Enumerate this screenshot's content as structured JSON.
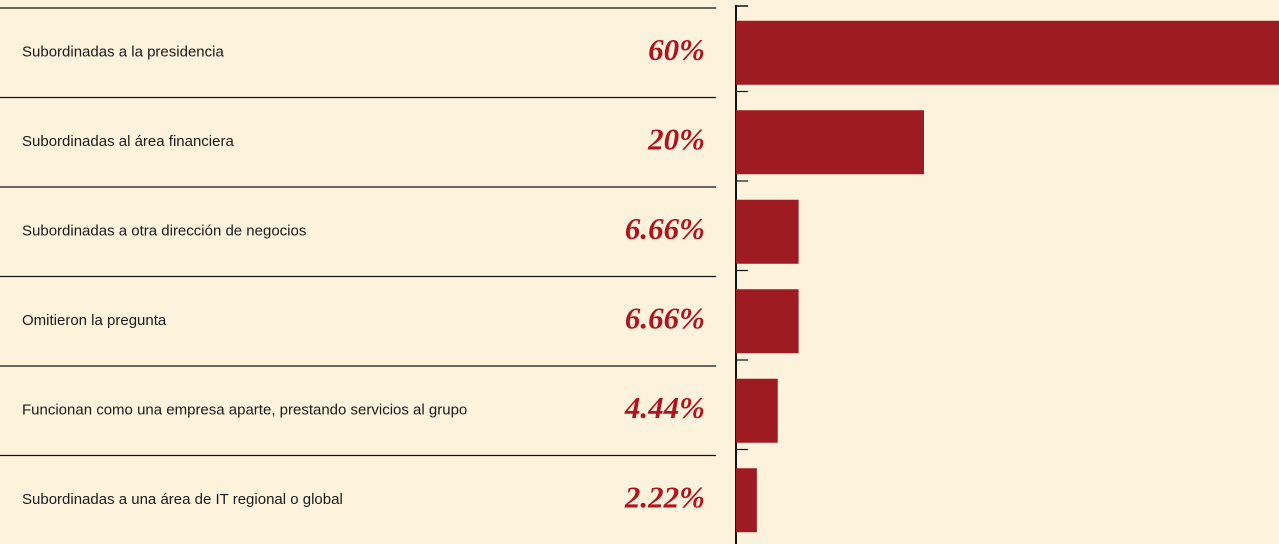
{
  "chart_data": {
    "type": "bar",
    "orientation": "horizontal",
    "color": "#9e1b22",
    "categories": [
      "Subordinadas a la presidencia",
      "Subordinadas al área financiera",
      "Subordinadas a otra dirección de negocios",
      "Omitieron la pregunta",
      "Funcionan como una empresa aparte, prestando servicios al grupo",
      "Subordinadas a una área de IT regional o global"
    ],
    "values": [
      60,
      20,
      6.66,
      6.66,
      4.44,
      2.22
    ],
    "value_labels": [
      "60%",
      "20%",
      "6.66%",
      "6.66%",
      "4.44%",
      "2.22%"
    ]
  }
}
